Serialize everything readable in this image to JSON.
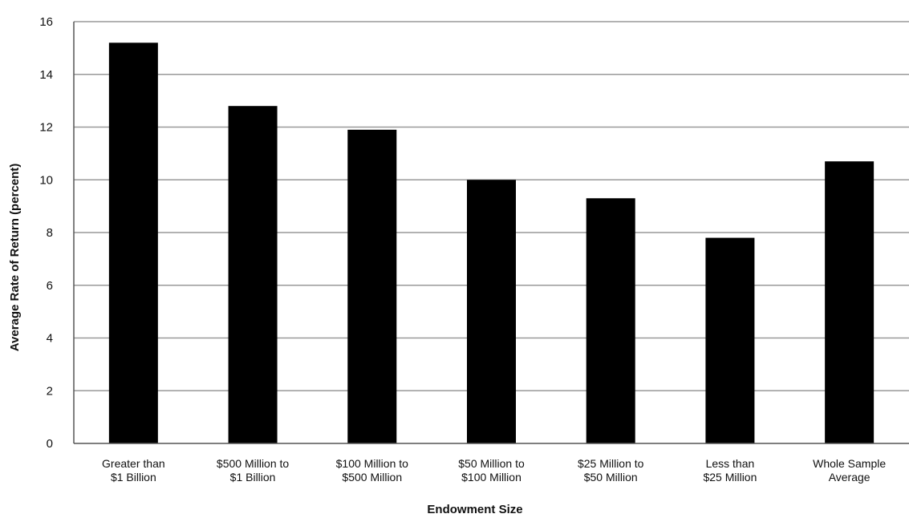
{
  "chart_data": {
    "type": "bar",
    "title": "",
    "xlabel": "Endowment Size",
    "ylabel": "Average Rate of Return (percent)",
    "ylim": [
      0,
      16
    ],
    "yticks": [
      0,
      2,
      4,
      6,
      8,
      10,
      12,
      14,
      16
    ],
    "grid": true,
    "legend": "none",
    "categories": [
      [
        "Greater than",
        "$1 Billion"
      ],
      [
        "$500 Million to",
        "$1 Billion"
      ],
      [
        "$100 Million to",
        "$500 Million"
      ],
      [
        "$50 Million to",
        "$100 Million"
      ],
      [
        "$25 Million to",
        "$50 Million"
      ],
      [
        "Less than",
        "$25 Million"
      ],
      [
        "Whole Sample",
        "Average"
      ]
    ],
    "values": [
      15.2,
      12.8,
      11.9,
      10.0,
      9.3,
      7.8,
      10.7
    ],
    "colors": {
      "bar": "#000000",
      "grid": "#999999",
      "axis": "#555555",
      "background": "#ffffff"
    }
  }
}
